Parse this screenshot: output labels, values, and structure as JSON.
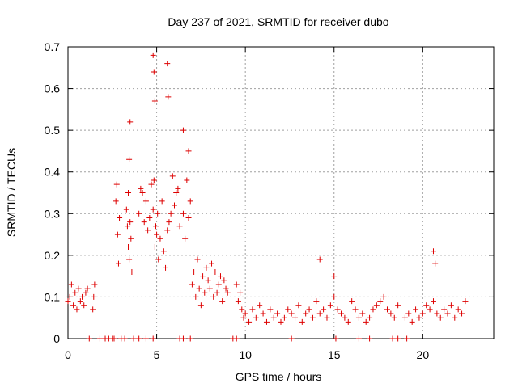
{
  "chart_data": {
    "type": "scatter",
    "title": "Day 237 of 2021, SRMTID for receiver dubo",
    "xlabel": "GPS time / hours",
    "ylabel": "SRMTID / TECUs",
    "xlim": [
      0,
      24
    ],
    "ylim": [
      0,
      0.7
    ],
    "xticks": [
      0,
      5,
      10,
      15,
      20
    ],
    "xtick_labels": [
      "0",
      "5",
      "10",
      "15",
      "20"
    ],
    "yticks": [
      0,
      0.1,
      0.2,
      0.3,
      0.4,
      0.5,
      0.6,
      0.7
    ],
    "ytick_labels": [
      "0",
      "0.1",
      "0.2",
      "0.3",
      "0.4",
      "0.5",
      "0.6",
      "0.7"
    ],
    "grid": true,
    "marker": "+",
    "color": "#dd0000",
    "series": [
      {
        "name": "SRMTID",
        "x": [
          0.0,
          0.1,
          0.2,
          0.3,
          0.4,
          0.5,
          0.6,
          0.7,
          0.8,
          0.9,
          1.0,
          1.1,
          1.4,
          1.45,
          1.5,
          2.7,
          2.75,
          2.8,
          2.85,
          2.9,
          3.3,
          3.35,
          3.4,
          3.45,
          3.5,
          3.55,
          3.6,
          4.0,
          4.1,
          4.2,
          4.3,
          4.4,
          4.5,
          4.6,
          4.7,
          4.8,
          4.85,
          4.9,
          4.95,
          5.0,
          5.05,
          5.1,
          5.2,
          5.3,
          5.4,
          5.5,
          5.6,
          5.7,
          5.8,
          5.9,
          6.0,
          6.1,
          6.2,
          6.3,
          6.5,
          6.6,
          6.7,
          6.8,
          6.9,
          7.0,
          7.1,
          7.2,
          7.3,
          7.4,
          7.5,
          7.6,
          7.7,
          7.8,
          7.9,
          8.0,
          8.1,
          8.2,
          8.3,
          8.4,
          8.5,
          8.6,
          8.7,
          8.8,
          8.9,
          9.0,
          9.5,
          9.6,
          9.7,
          9.8,
          9.9,
          10.0,
          10.2,
          10.4,
          10.6,
          10.8,
          11.0,
          11.2,
          11.4,
          11.6,
          11.8,
          12.0,
          12.2,
          12.4,
          12.6,
          12.8,
          13.0,
          13.2,
          13.4,
          13.6,
          13.8,
          14.0,
          14.2,
          14.4,
          14.6,
          14.8,
          15.0,
          15.2,
          15.4,
          15.6,
          15.8,
          16.0,
          16.2,
          16.4,
          16.6,
          16.8,
          17.0,
          17.2,
          17.4,
          17.6,
          17.8,
          18.0,
          18.2,
          18.4,
          18.6,
          19.0,
          19.2,
          19.4,
          19.6,
          19.8,
          20.0,
          20.2,
          20.4,
          20.6,
          20.8,
          21.0,
          21.2,
          21.4,
          21.6,
          21.8,
          22.0,
          22.2,
          22.4,
          3.5,
          3.45,
          3.4,
          4.8,
          4.85,
          4.9,
          5.6,
          5.65,
          6.5,
          6.8,
          14.2,
          15.0,
          20.6,
          20.7,
          1.2,
          1.8,
          2.1,
          2.3,
          2.5,
          2.6,
          3.0,
          3.2,
          3.7,
          4.0,
          4.4,
          4.8,
          6.3,
          6.5,
          6.9,
          9.3,
          9.5,
          12.6,
          15.1,
          16.4,
          17.0,
          18.3,
          18.6,
          19.1
        ],
        "y": [
          0.09,
          0.1,
          0.13,
          0.08,
          0.11,
          0.07,
          0.12,
          0.09,
          0.1,
          0.08,
          0.11,
          0.12,
          0.07,
          0.1,
          0.13,
          0.33,
          0.37,
          0.25,
          0.18,
          0.29,
          0.31,
          0.27,
          0.22,
          0.19,
          0.28,
          0.24,
          0.16,
          0.3,
          0.36,
          0.35,
          0.28,
          0.33,
          0.26,
          0.29,
          0.37,
          0.31,
          0.38,
          0.22,
          0.27,
          0.25,
          0.3,
          0.19,
          0.24,
          0.33,
          0.21,
          0.17,
          0.26,
          0.28,
          0.3,
          0.39,
          0.32,
          0.35,
          0.36,
          0.27,
          0.3,
          0.24,
          0.38,
          0.29,
          0.33,
          0.13,
          0.16,
          0.1,
          0.19,
          0.12,
          0.08,
          0.15,
          0.11,
          0.17,
          0.14,
          0.12,
          0.18,
          0.1,
          0.16,
          0.11,
          0.13,
          0.15,
          0.09,
          0.14,
          0.12,
          0.11,
          0.13,
          0.09,
          0.11,
          0.07,
          0.05,
          0.06,
          0.04,
          0.07,
          0.05,
          0.08,
          0.06,
          0.04,
          0.07,
          0.05,
          0.06,
          0.04,
          0.05,
          0.07,
          0.06,
          0.05,
          0.08,
          0.04,
          0.06,
          0.07,
          0.05,
          0.09,
          0.06,
          0.07,
          0.05,
          0.08,
          0.1,
          0.07,
          0.06,
          0.05,
          0.04,
          0.09,
          0.07,
          0.05,
          0.06,
          0.04,
          0.05,
          0.07,
          0.08,
          0.09,
          0.1,
          0.07,
          0.06,
          0.05,
          0.08,
          0.05,
          0.06,
          0.04,
          0.07,
          0.05,
          0.06,
          0.08,
          0.07,
          0.09,
          0.06,
          0.05,
          0.07,
          0.06,
          0.08,
          0.05,
          0.07,
          0.06,
          0.09,
          0.52,
          0.43,
          0.35,
          0.68,
          0.64,
          0.57,
          0.66,
          0.58,
          0.5,
          0.45,
          0.19,
          0.15,
          0.21,
          0.18,
          0.0,
          0.0,
          0.0,
          0.0,
          0.0,
          0.0,
          0.0,
          0.0,
          0.0,
          0.0,
          0.0,
          0.0,
          0.0,
          0.0,
          0.0,
          0.0,
          0.0,
          0.0,
          0.0,
          0.0,
          0.0,
          0.0,
          0.0,
          0.0
        ]
      }
    ]
  }
}
